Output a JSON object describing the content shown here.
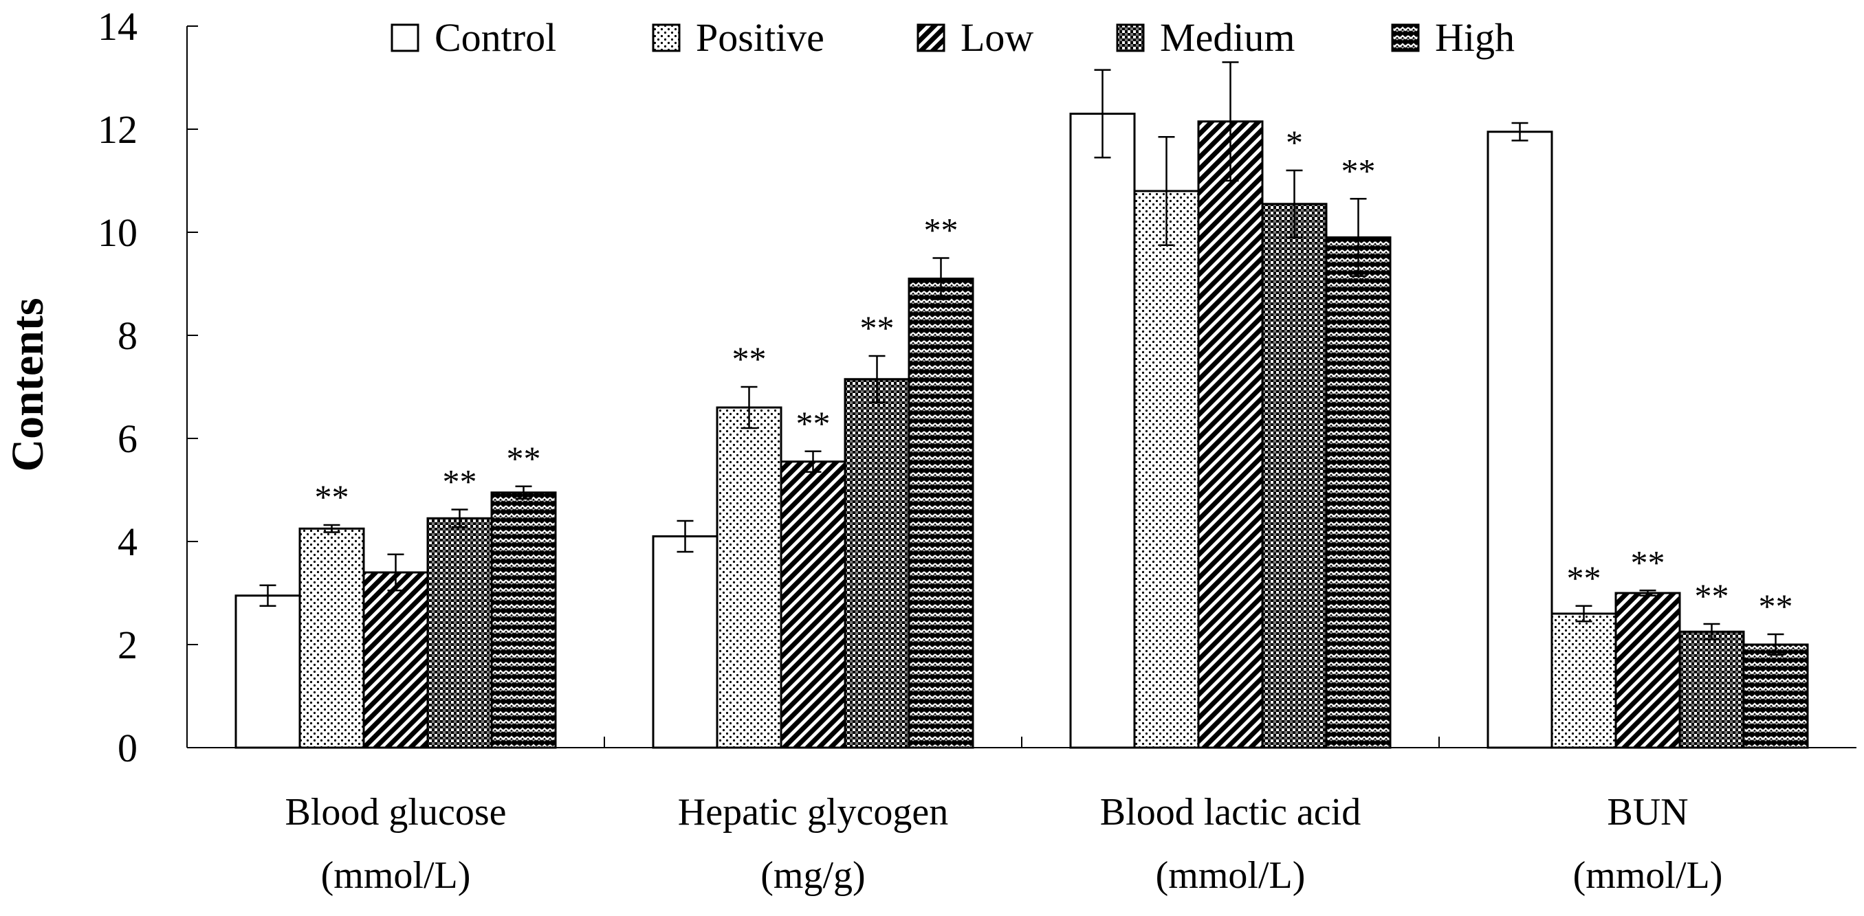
{
  "chart_data": {
    "type": "bar",
    "ylabel": "Contents",
    "xlabel": "",
    "ylim": [
      0,
      14
    ],
    "yticks": [
      0,
      2,
      4,
      6,
      8,
      10,
      12,
      14
    ],
    "categories": [
      [
        "Blood glucose",
        "(mmol/L)"
      ],
      [
        "Hepatic glycogen",
        "(mg/g)"
      ],
      [
        "Blood lactic acid",
        "(mmol/L)"
      ],
      [
        "BUN",
        "(mmol/L)"
      ]
    ],
    "legend_position": "top",
    "series": [
      {
        "name": "Control",
        "pattern": "white",
        "values": [
          2.95,
          4.1,
          12.3,
          11.95
        ],
        "errors": [
          0.2,
          0.3,
          0.85,
          0.17
        ],
        "sig": [
          "",
          "",
          "",
          ""
        ]
      },
      {
        "name": "Positive",
        "pattern": "dots",
        "values": [
          4.25,
          6.6,
          10.8,
          2.6
        ],
        "errors": [
          0.07,
          0.4,
          1.05,
          0.15
        ],
        "sig": [
          "**",
          "**",
          "",
          "**"
        ]
      },
      {
        "name": "Low",
        "pattern": "diagonal",
        "values": [
          3.4,
          5.55,
          12.15,
          3.0
        ],
        "errors": [
          0.35,
          0.2,
          1.15,
          0.05
        ],
        "sig": [
          "",
          "**",
          "",
          "**"
        ]
      },
      {
        "name": "Medium",
        "pattern": "grid",
        "values": [
          4.45,
          7.15,
          10.55,
          2.25
        ],
        "errors": [
          0.17,
          0.45,
          0.65,
          0.15
        ],
        "sig": [
          "**",
          "**",
          "*",
          "**"
        ]
      },
      {
        "name": "High",
        "pattern": "zigzag",
        "values": [
          4.95,
          9.1,
          9.9,
          2.0
        ],
        "errors": [
          0.12,
          0.4,
          0.75,
          0.2
        ],
        "sig": [
          "**",
          "**",
          "**",
          "**"
        ]
      }
    ],
    "colors": {
      "axis": "#000000",
      "bar_stroke": "#000000",
      "background": "#ffffff"
    }
  }
}
